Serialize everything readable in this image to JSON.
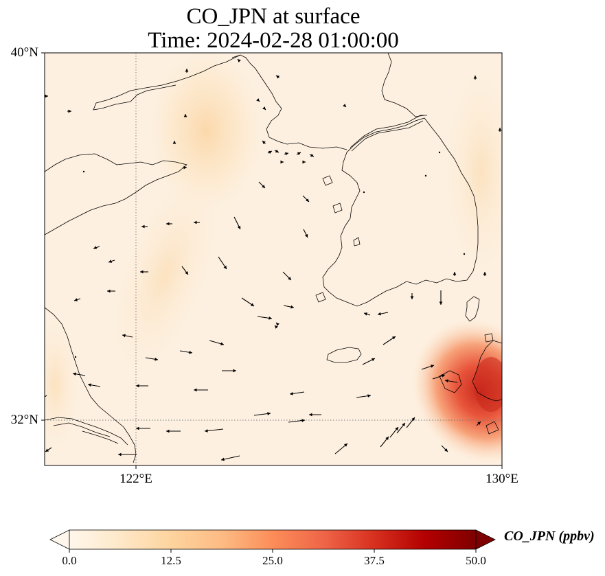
{
  "figure": {
    "title_line1": "CO_JPN at surface",
    "title_line2": "Time: 2024-02-28 01:00:00",
    "variable": "CO_JPN",
    "level": "surface",
    "time": "2024-02-28 01:00:00"
  },
  "axes": {
    "lat_labels": [
      "40°N",
      "32°N"
    ],
    "lon_labels": [
      "122°E",
      "130°E"
    ],
    "lon_range": [
      120,
      130
    ],
    "lat_range": [
      31,
      40
    ],
    "gridlines": "dotted at 122°E and 32°N"
  },
  "colorbar": {
    "label": "CO_JPN (ppbv)",
    "ticks": [
      "0.0",
      "12.5",
      "25.0",
      "37.5",
      "50.0"
    ],
    "range": [
      0,
      50
    ],
    "colormap": "OrRd",
    "extend": "both",
    "colors": [
      "#fff7ec",
      "#fee8c8",
      "#fdd49e",
      "#fdbb84",
      "#fc8d59",
      "#ef6548",
      "#d7301f",
      "#b30000",
      "#7f0000"
    ]
  },
  "field": {
    "background_color": "#fdf0e0",
    "plume_color_low": "#fbd9ae",
    "hotspot_color": "#e34a33",
    "hotspot_core_color": "#c8281c",
    "hotspot_location": "southeast corner near Kyushu"
  },
  "wind": {
    "arrow_color": "#000000",
    "arrow_count": 90
  }
}
